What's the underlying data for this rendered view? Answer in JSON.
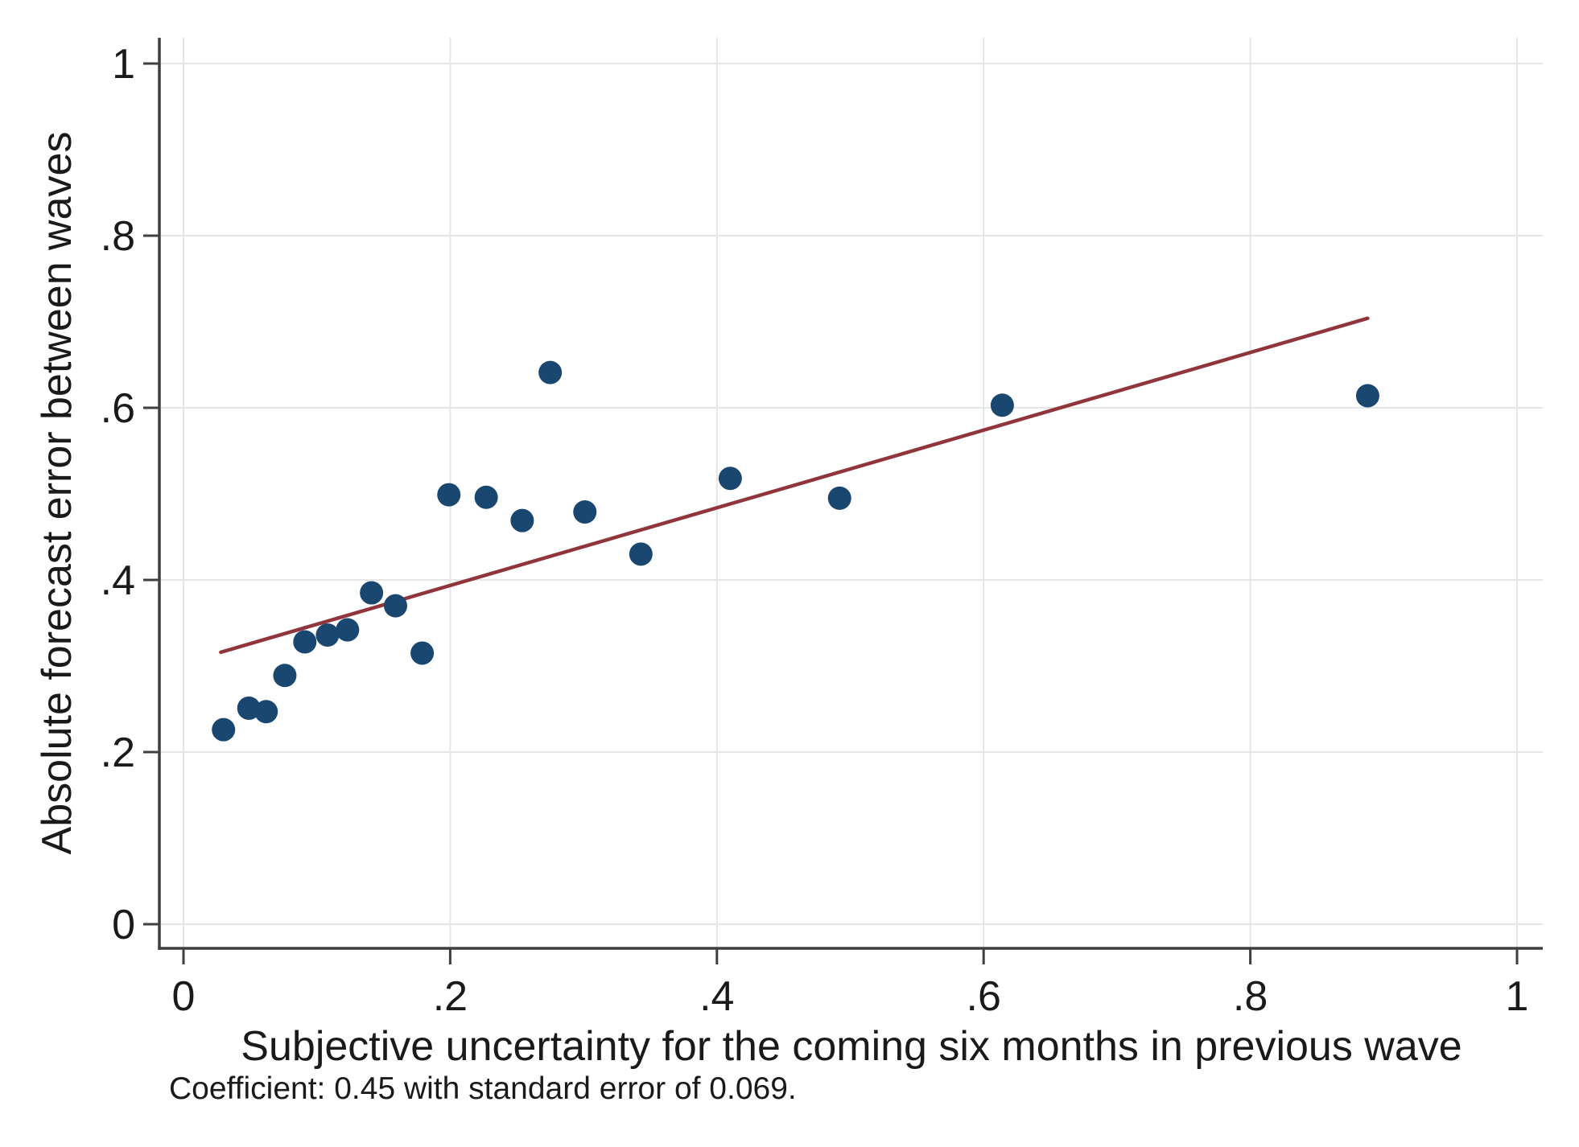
{
  "chart_data": {
    "type": "scatter",
    "title": "",
    "xlabel": "Subjective uncertainty for the coming six months in previous wave",
    "ylabel": "Absolute forecast error between waves",
    "note": "Coefficient: 0.45 with standard error of 0.069.",
    "xlim": [
      -0.018,
      1.02
    ],
    "ylim": [
      -0.028,
      1.03
    ],
    "grid": true,
    "legend": null,
    "x_ticks": {
      "values": [
        0,
        0.2,
        0.4,
        0.6,
        0.8,
        1
      ],
      "labels": [
        "0",
        ".2",
        ".4",
        ".6",
        ".8",
        "1"
      ]
    },
    "y_ticks": {
      "values": [
        0,
        0.2,
        0.4,
        0.6,
        0.8,
        1
      ],
      "labels": [
        "0",
        ".2",
        ".4",
        ".6",
        ".8",
        "1"
      ]
    },
    "points": [
      [
        0.03,
        0.226
      ],
      [
        0.049,
        0.251
      ],
      [
        0.062,
        0.247
      ],
      [
        0.076,
        0.289
      ],
      [
        0.091,
        0.328
      ],
      [
        0.108,
        0.336
      ],
      [
        0.123,
        0.342
      ],
      [
        0.141,
        0.385
      ],
      [
        0.159,
        0.37
      ],
      [
        0.179,
        0.315
      ],
      [
        0.199,
        0.499
      ],
      [
        0.227,
        0.496
      ],
      [
        0.254,
        0.469
      ],
      [
        0.275,
        0.641
      ],
      [
        0.301,
        0.479
      ],
      [
        0.343,
        0.43
      ],
      [
        0.41,
        0.518
      ],
      [
        0.492,
        0.495
      ],
      [
        0.614,
        0.603
      ],
      [
        0.888,
        0.614
      ]
    ],
    "fit_line": {
      "x1": 0.028,
      "y1": 0.316,
      "x2": 0.888,
      "y2": 0.704,
      "slope": 0.45,
      "standard_error": 0.069
    },
    "colors": {
      "point": "#1a476f",
      "fit_line": "#90353b",
      "grid": "#e6e6e6",
      "axis": "#3f3f3f",
      "text": "#1a1a1a"
    }
  }
}
